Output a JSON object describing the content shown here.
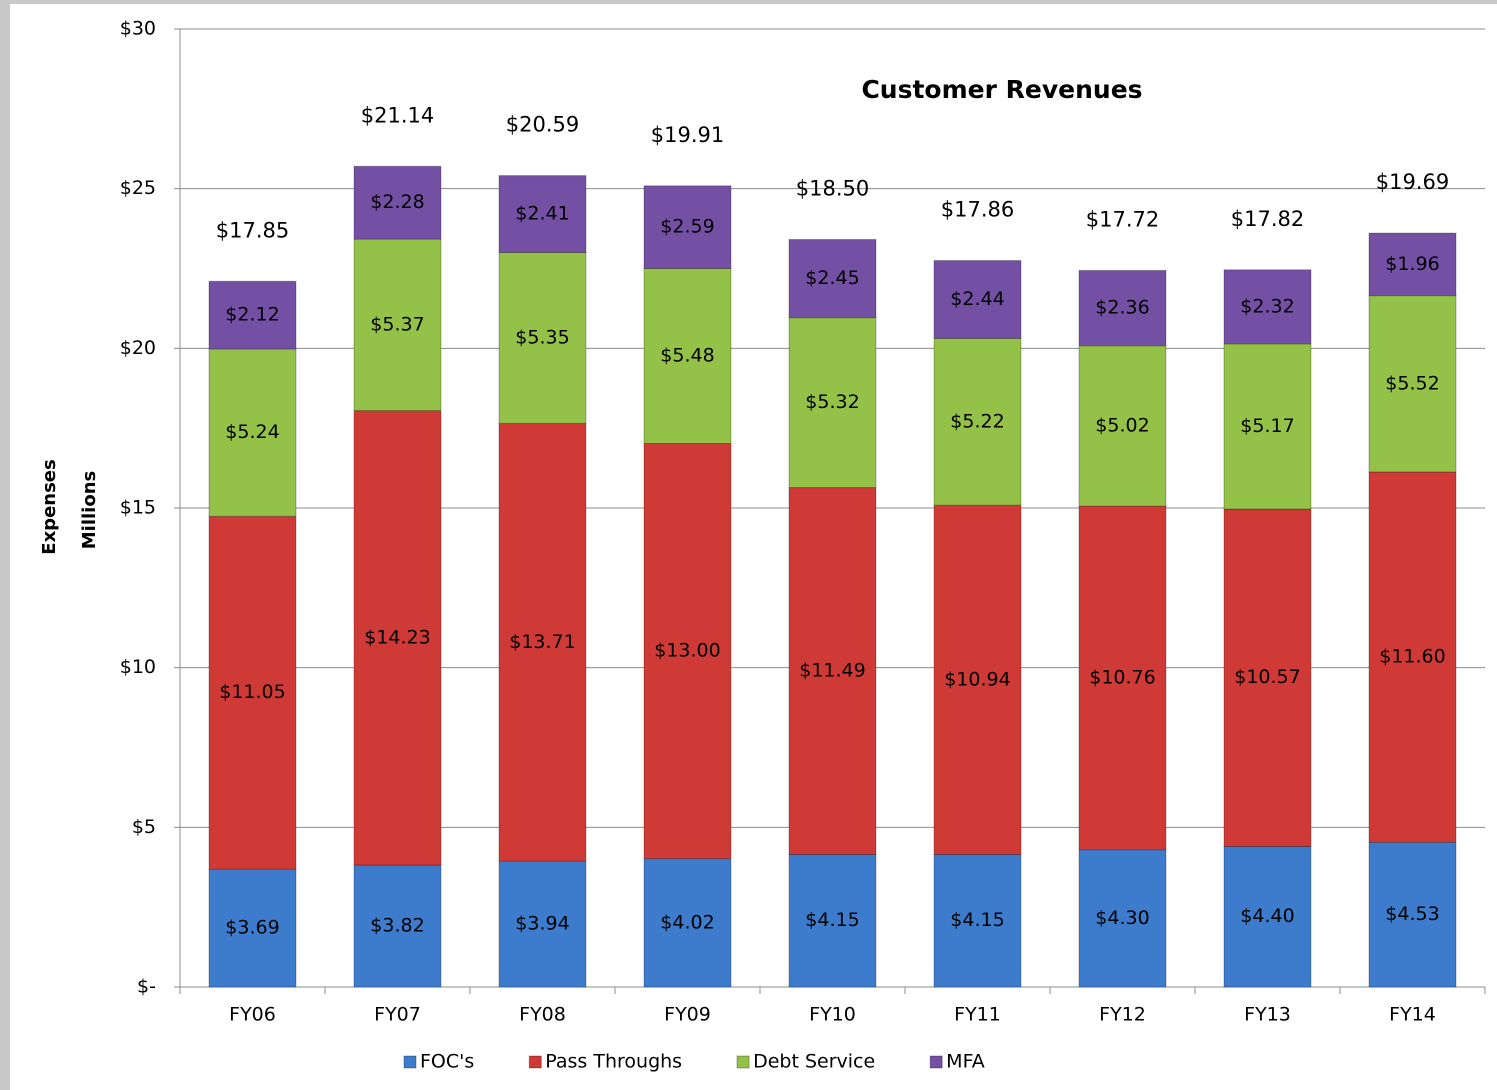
{
  "chart_data": {
    "type": "stacked_bar",
    "title": "Customer Revenues",
    "ylabel": "Expenses",
    "ylabel2": "Millions",
    "categories": [
      "FY06",
      "FY07",
      "FY08",
      "FY09",
      "FY10",
      "FY11",
      "FY12",
      "FY13",
      "FY14"
    ],
    "series": [
      {
        "name": "FOC's",
        "color": "#3d7ccc",
        "values": [
          3.69,
          3.82,
          3.94,
          4.02,
          4.15,
          4.15,
          4.3,
          4.4,
          4.53
        ],
        "value_labels": [
          "$3.69",
          "$3.82",
          "$3.94",
          "$4.02",
          "$4.15",
          "$4.15",
          "$4.30",
          "$4.40",
          "$4.53"
        ]
      },
      {
        "name": "Pass Throughs",
        "color": "#cf3a36",
        "values": [
          11.05,
          14.23,
          13.71,
          13.0,
          11.49,
          10.94,
          10.76,
          10.57,
          11.6
        ],
        "value_labels": [
          "$11.05",
          "$14.23",
          "$13.71",
          "$13.00",
          "$11.49",
          "$10.94",
          "$10.76",
          "$10.57",
          "$11.60"
        ]
      },
      {
        "name": "Debt Service",
        "color": "#94c148",
        "values": [
          5.24,
          5.37,
          5.35,
          5.48,
          5.32,
          5.22,
          5.02,
          5.17,
          5.52
        ],
        "value_labels": [
          "$5.24",
          "$5.37",
          "$5.35",
          "$5.48",
          "$5.32",
          "$5.22",
          "$5.02",
          "$5.17",
          "$5.52"
        ]
      },
      {
        "name": "MFA",
        "color": "#7450a4",
        "values": [
          2.12,
          2.28,
          2.41,
          2.59,
          2.45,
          2.44,
          2.36,
          2.32,
          1.96
        ],
        "value_labels": [
          "$2.12",
          "$2.28",
          "$2.41",
          "$2.59",
          "$2.45",
          "$2.44",
          "$2.36",
          "$2.32",
          "$1.96"
        ]
      }
    ],
    "totals": {
      "values": [
        17.85,
        21.14,
        20.59,
        19.91,
        18.5,
        17.86,
        17.72,
        17.82,
        19.69
      ],
      "value_labels": [
        "$17.85",
        "$21.14",
        "$20.59",
        "$19.91",
        "$18.50",
        "$17.86",
        "$17.72",
        "$17.82",
        "$19.69"
      ]
    },
    "ylim": [
      0,
      30
    ],
    "yticks": [
      {
        "value": 0,
        "label": "$-"
      },
      {
        "value": 5,
        "label": "$5"
      },
      {
        "value": 10,
        "label": "$10"
      },
      {
        "value": 15,
        "label": "$15"
      },
      {
        "value": 20,
        "label": "$20"
      },
      {
        "value": 25,
        "label": "$25"
      },
      {
        "value": 30,
        "label": "$30"
      }
    ],
    "grid": true,
    "legend": "bottom"
  }
}
